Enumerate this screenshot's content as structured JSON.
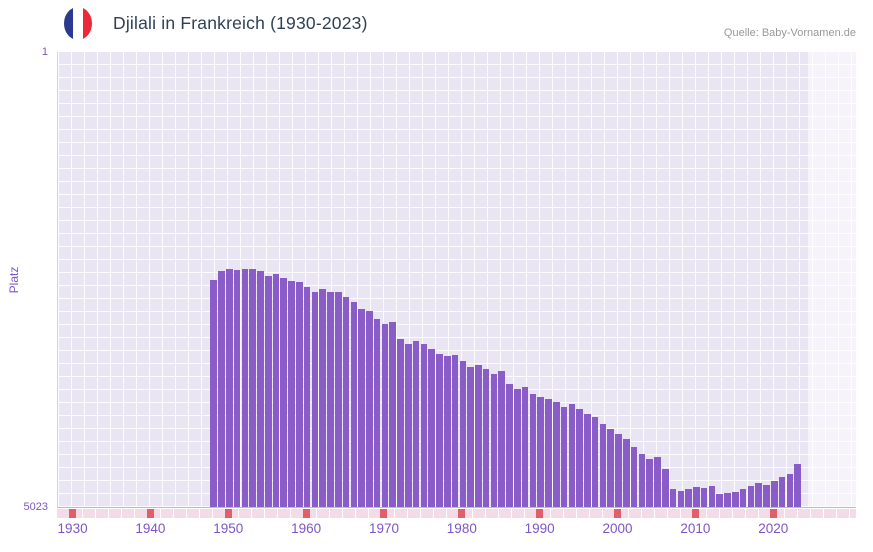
{
  "header": {
    "title": "Djilali in Frankreich (1930-2023)",
    "source": "Quelle: Baby-Vornamen.de",
    "flag_icon": "france-flag-icon"
  },
  "axes": {
    "y_label": "Platz",
    "y_top_tick": "1",
    "y_bottom_tick": "5023"
  },
  "colors": {
    "bar": "#8a5cc8",
    "plot_bg": "#eae5f3",
    "grid": "#ffffff",
    "axis_text": "#7d55c8",
    "title_text": "#2e4154",
    "source_text": "#999999",
    "decade_tick": "#e0606a",
    "minor_tick": "#f3dbe7",
    "highlight_band": "rgba(255,255,255,0.55)",
    "flag_blue": "#2b3990",
    "flag_red": "#ed2939"
  },
  "chart_data": {
    "type": "bar",
    "title": "Djilali in Frankreich (1930-2023)",
    "xlabel": "",
    "ylabel": "Platz",
    "y_axis": {
      "min": 1,
      "max": 5023,
      "inverted": true
    },
    "x_range": [
      1928,
      2030.5
    ],
    "x_ticks": [
      1930,
      1940,
      1950,
      1960,
      1970,
      1980,
      1990,
      2000,
      2010,
      2020
    ],
    "grid": true,
    "legend": "none",
    "series": [
      {
        "name": "Platz",
        "x": [
          1948,
          1949,
          1950,
          1951,
          1952,
          1953,
          1954,
          1955,
          1956,
          1957,
          1958,
          1959,
          1960,
          1961,
          1962,
          1963,
          1964,
          1965,
          1966,
          1967,
          1968,
          1969,
          1970,
          1971,
          1972,
          1973,
          1974,
          1975,
          1976,
          1977,
          1978,
          1979,
          1980,
          1981,
          1982,
          1983,
          1984,
          1985,
          1986,
          1987,
          1988,
          1989,
          1990,
          1991,
          1992,
          1993,
          1994,
          1995,
          1996,
          1997,
          1998,
          1999,
          2000,
          2001,
          2002,
          2003,
          2004,
          2005,
          2006,
          2007,
          2008,
          2009,
          2010,
          2011,
          2012,
          2013,
          2014,
          2015,
          2016,
          2017,
          2018,
          2019,
          2020,
          2021,
          2022,
          2023
        ],
        "values": [
          2520,
          2420,
          2400,
          2410,
          2395,
          2400,
          2415,
          2475,
          2455,
          2490,
          2530,
          2545,
          2590,
          2645,
          2620,
          2655,
          2645,
          2700,
          2755,
          2840,
          2865,
          2950,
          3005,
          2985,
          3170,
          3225,
          3195,
          3225,
          3280,
          3335,
          3360,
          3345,
          3415,
          3480,
          3455,
          3500,
          3555,
          3525,
          3665,
          3720,
          3700,
          3775,
          3810,
          3830,
          3865,
          3920,
          3885,
          3940,
          3995,
          4030,
          4105,
          4160,
          4215,
          4270,
          4360,
          4435,
          4490,
          4470,
          4600,
          4820,
          4845,
          4820,
          4800,
          4810,
          4790,
          4875,
          4865,
          4855,
          4820,
          4790,
          4755,
          4775,
          4735,
          4690,
          4655,
          4545
        ]
      }
    ]
  }
}
